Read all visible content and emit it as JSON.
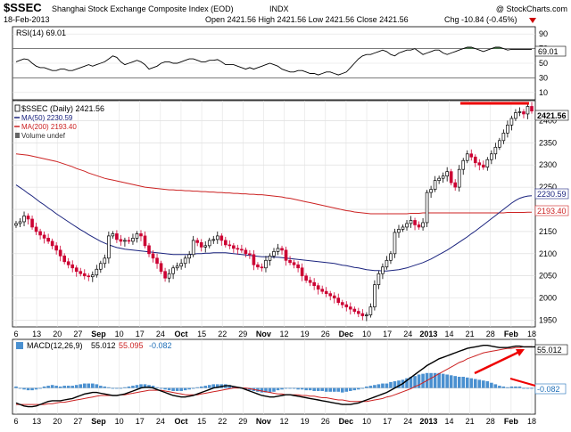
{
  "header": {
    "symbol": "$SSEC",
    "name": "Shanghai Stock Exchange Composite Index (EOD)",
    "exchange": "INDX",
    "watermark": "@ StockCharts.com",
    "date": "18-Feb-2013",
    "ohlc": "Open 2421.56 High 2421.56 Low 2421.56 Close 2421.56",
    "change": "Chg -10.84 (-0.45%)",
    "change_color": "#cc0000"
  },
  "colors": {
    "up": "#000000",
    "down": "#cc0033",
    "ma50": "#1a237e",
    "ma200": "#cc2222",
    "macd_line": "#000000",
    "signal_line": "#cc2222",
    "histogram": "#4a90d0",
    "rsi_fill": "#2e7d32",
    "annotation": "#ee0000"
  },
  "rsi": {
    "legend": "RSI(14) 69.01",
    "last_label": "69.01",
    "y_ticks": [
      "90",
      "70",
      "50",
      "30",
      "10"
    ],
    "range": [
      0,
      100
    ],
    "levels": [
      70,
      30
    ]
  },
  "price": {
    "legend_main": "$SSEC (Daily) 2421.56",
    "legend_ma50": "MA(50) 2230.59",
    "legend_ma200": "MA(200) 2193.40",
    "legend_volume": "Volume undef",
    "last_label": "2421.56",
    "ma50_label": "2230.59",
    "ma200_label": "2193.40",
    "y_ticks": [
      "2400",
      "2350",
      "2300",
      "2250",
      "2200",
      "2150",
      "2100",
      "2050",
      "2000",
      "1950"
    ],
    "x_labels": [
      "6",
      "13",
      "20",
      "27",
      "Sep",
      "10",
      "17",
      "24",
      "Oct",
      "15",
      "22",
      "29",
      "Nov",
      "12",
      "19",
      "26",
      "Dec",
      "10",
      "17",
      "24",
      "2013",
      "14",
      "21",
      "28",
      "Feb",
      "18"
    ]
  },
  "macd": {
    "legend_prefix": "MACD(12,26,9)",
    "legend_macd": "55.012",
    "legend_signal": "55.095",
    "legend_hist": "-0.082",
    "last_macd_label": "55.012",
    "last_hist_label": "-0.082",
    "x_labels": [
      "6",
      "13",
      "20",
      "27",
      "Sep",
      "10",
      "17",
      "24",
      "Oct",
      "15",
      "22",
      "29",
      "Nov",
      "12",
      "19",
      "26",
      "Dec",
      "10",
      "17",
      "24",
      "2013",
      "14",
      "21",
      "28",
      "Feb",
      "18"
    ]
  },
  "chart_data": {
    "type": "candlestick",
    "title": "Shanghai Stock Exchange Composite Index (EOD)",
    "period": "Daily, Aug 2012 – 18 Feb 2013",
    "ylim": [
      1935,
      2445
    ],
    "close": [
      2168,
      2172,
      2185,
      2178,
      2160,
      2150,
      2142,
      2135,
      2128,
      2118,
      2108,
      2095,
      2082,
      2075,
      2068,
      2060,
      2055,
      2050,
      2048,
      2052,
      2065,
      2078,
      2090,
      2140,
      2145,
      2132,
      2128,
      2130,
      2128,
      2135,
      2145,
      2140,
      2118,
      2100,
      2090,
      2078,
      2060,
      2045,
      2055,
      2068,
      2072,
      2078,
      2090,
      2098,
      2130,
      2125,
      2115,
      2118,
      2130,
      2132,
      2140,
      2130,
      2120,
      2118,
      2112,
      2110,
      2108,
      2100,
      2098,
      2075,
      2070,
      2068,
      2085,
      2095,
      2105,
      2112,
      2108,
      2085,
      2080,
      2075,
      2068,
      2050,
      2040,
      2035,
      2028,
      2020,
      2015,
      2010,
      2005,
      2000,
      1990,
      1985,
      1980,
      1975,
      1970,
      1965,
      1960,
      1962,
      1980,
      2030,
      2055,
      2070,
      2085,
      2100,
      2148,
      2155,
      2160,
      2168,
      2175,
      2165,
      2160,
      2170,
      2238,
      2245,
      2265,
      2270,
      2275,
      2285,
      2260,
      2250,
      2290,
      2310,
      2325,
      2318,
      2305,
      2300,
      2295,
      2312,
      2325,
      2340,
      2355,
      2372,
      2390,
      2405,
      2418,
      2420,
      2415,
      2432,
      2421.56
    ],
    "ma50": [
      2255,
      2249,
      2243,
      2236,
      2230,
      2223,
      2216,
      2210,
      2203,
      2197,
      2190,
      2184,
      2178,
      2172,
      2166,
      2160,
      2154,
      2149,
      2143,
      2138,
      2133,
      2128,
      2124,
      2120,
      2117,
      2114,
      2112,
      2110,
      2109,
      2108,
      2107,
      2106,
      2105,
      2104,
      2103,
      2102,
      2101,
      2100,
      2099,
      2098,
      2098,
      2098,
      2098,
      2098,
      2099,
      2100,
      2100,
      2101,
      2101,
      2102,
      2102,
      2102,
      2102,
      2101,
      2100,
      2099,
      2098,
      2097,
      2096,
      2095,
      2094,
      2093,
      2093,
      2093,
      2092,
      2092,
      2091,
      2090,
      2089,
      2088,
      2087,
      2086,
      2085,
      2084,
      2083,
      2082,
      2081,
      2080,
      2079,
      2078,
      2076,
      2074,
      2073,
      2071,
      2069,
      2068,
      2066,
      2064,
      2063,
      2062,
      2062,
      2061,
      2061,
      2062,
      2063,
      2064,
      2066,
      2068,
      2071,
      2074,
      2077,
      2080,
      2084,
      2088,
      2093,
      2098,
      2103,
      2108,
      2114,
      2120,
      2126,
      2132,
      2138,
      2145,
      2151,
      2158,
      2165,
      2172,
      2179,
      2186,
      2193,
      2200,
      2207,
      2214,
      2220,
      2225,
      2228,
      2230,
      2230.59
    ],
    "ma200": [
      2325,
      2324,
      2323,
      2322,
      2320,
      2318,
      2316,
      2314,
      2312,
      2310,
      2308,
      2305,
      2302,
      2299,
      2296,
      2292,
      2289,
      2286,
      2282,
      2279,
      2276,
      2273,
      2270,
      2268,
      2266,
      2264,
      2262,
      2260,
      2258,
      2256,
      2254,
      2252,
      2250,
      2249,
      2248,
      2247,
      2246,
      2245,
      2244,
      2244,
      2243,
      2243,
      2242,
      2242,
      2241,
      2241,
      2240,
      2240,
      2239,
      2239,
      2238,
      2238,
      2237,
      2237,
      2236,
      2236,
      2235,
      2235,
      2234,
      2234,
      2233,
      2233,
      2232,
      2231,
      2230,
      2229,
      2228,
      2226,
      2225,
      2223,
      2221,
      2219,
      2217,
      2215,
      2213,
      2211,
      2209,
      2207,
      2205,
      2203,
      2201,
      2199,
      2197,
      2196,
      2194,
      2193,
      2192,
      2191,
      2190,
      2190,
      2190,
      2190,
      2190,
      2190,
      2190,
      2190,
      2190,
      2190,
      2191,
      2191,
      2191,
      2192,
      2192,
      2192,
      2192,
      2192,
      2192,
      2192,
      2192,
      2192,
      2192,
      2192,
      2192,
      2192,
      2192,
      2192,
      2192,
      2192,
      2192,
      2192,
      2192,
      2192,
      2193,
      2193,
      2193,
      2193,
      2193,
      2193.4,
      2193.4
    ],
    "macd": [
      -20,
      -22,
      -24,
      -25,
      -25,
      -24,
      -22,
      -20,
      -18,
      -17,
      -17,
      -17,
      -16,
      -15,
      -14,
      -12,
      -10,
      -8,
      -7,
      -6,
      -6,
      -7,
      -8,
      -9,
      -10,
      -10,
      -9,
      -8,
      -6,
      -4,
      -2,
      0,
      1,
      1,
      0,
      -2,
      -4,
      -6,
      -8,
      -10,
      -11,
      -12,
      -12,
      -11,
      -10,
      -8,
      -6,
      -4,
      -2,
      0,
      1,
      2,
      3,
      3,
      2,
      1,
      0,
      -2,
      -4,
      -6,
      -8,
      -10,
      -11,
      -12,
      -12,
      -11,
      -10,
      -9,
      -9,
      -10,
      -11,
      -12,
      -13,
      -14,
      -15,
      -16,
      -17,
      -18,
      -19,
      -20,
      -21,
      -22,
      -22,
      -22,
      -21,
      -20,
      -18,
      -16,
      -14,
      -12,
      -10,
      -8,
      -6,
      -3,
      0,
      3,
      6,
      10,
      14,
      18,
      22,
      26,
      30,
      33,
      36,
      39,
      41,
      43,
      45,
      47,
      49,
      51,
      53,
      54,
      55,
      56,
      57,
      57,
      56,
      55,
      54,
      54,
      54,
      55,
      56,
      56,
      55,
      55,
      55,
      55.012
    ],
    "signal": [
      -22,
      -22,
      -22,
      -22,
      -22,
      -22,
      -22,
      -22,
      -21,
      -21,
      -20,
      -19,
      -19,
      -18,
      -17,
      -16,
      -15,
      -14,
      -13,
      -12,
      -11,
      -10,
      -10,
      -10,
      -10,
      -10,
      -9,
      -9,
      -8,
      -7,
      -6,
      -5,
      -4,
      -3,
      -3,
      -3,
      -3,
      -4,
      -5,
      -6,
      -7,
      -8,
      -9,
      -9,
      -9,
      -9,
      -8,
      -7,
      -6,
      -5,
      -4,
      -3,
      -2,
      -1,
      0,
      0,
      0,
      0,
      -1,
      -2,
      -3,
      -4,
      -5,
      -6,
      -7,
      -8,
      -8,
      -9,
      -9,
      -9,
      -9,
      -10,
      -10,
      -11,
      -11,
      -12,
      -13,
      -13,
      -14,
      -15,
      -16,
      -16,
      -17,
      -18,
      -18,
      -18,
      -18,
      -18,
      -17,
      -16,
      -15,
      -14,
      -12,
      -11,
      -9,
      -7,
      -5,
      -3,
      -1,
      2,
      4,
      7,
      10,
      13,
      16,
      19,
      22,
      25,
      28,
      31,
      34,
      36,
      39,
      41,
      43,
      45,
      47,
      48,
      49,
      50,
      51,
      52,
      53,
      53,
      54,
      54,
      55,
      55.095,
      55.095
    ],
    "rsi": [
      52,
      54,
      56,
      55,
      50,
      46,
      44,
      44,
      42,
      40,
      40,
      42,
      42,
      40,
      40,
      42,
      44,
      46,
      48,
      46,
      48,
      50,
      52,
      56,
      60,
      58,
      52,
      48,
      50,
      52,
      54,
      52,
      48,
      42,
      44,
      46,
      50,
      52,
      52,
      50,
      50,
      52,
      54,
      56,
      56,
      54,
      52,
      52,
      54,
      54,
      55,
      52,
      48,
      48,
      48,
      46,
      44,
      42,
      44,
      42,
      44,
      46,
      48,
      50,
      48,
      46,
      42,
      40,
      38,
      38,
      40,
      40,
      38,
      36,
      36,
      34,
      36,
      38,
      38,
      36,
      34,
      36,
      38,
      44,
      50,
      56,
      60,
      62,
      62,
      64,
      66,
      68,
      66,
      62,
      60,
      64,
      66,
      68,
      68,
      70,
      66,
      62,
      64,
      66,
      68,
      68,
      64,
      62,
      64,
      66,
      68,
      70,
      72,
      72,
      70,
      68,
      66,
      68,
      70,
      72,
      72,
      70,
      68,
      69.01,
      69.01,
      69.01,
      69.01,
      69.01,
      69.01
    ]
  }
}
